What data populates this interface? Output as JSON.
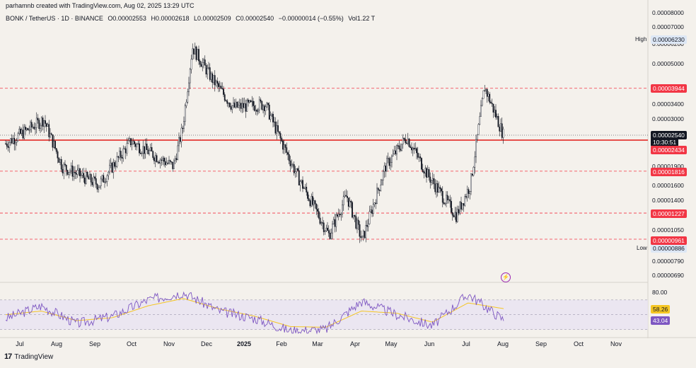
{
  "caption": "parhamnb created with TradingView.com, Aug 02, 2025 13:29 UTC",
  "legend": {
    "symbol": "BONK / TetherUS · 1D · BINANCE",
    "open": "O0.00002553",
    "high": "H0.00002618",
    "low": "L0.00002509",
    "close": "C0.00002540",
    "change": "−0.00000014 (−0.55%)",
    "volume": "Vol1.22 T"
  },
  "price_axis": [
    "0.00008000",
    "0.00007000",
    "0.00006200",
    "0.00005000",
    "0.00003400",
    "0.00003000",
    "0.00001900",
    "0.00001600",
    "0.00001400",
    "0.00001050",
    "0.00000790",
    "0.00000690"
  ],
  "high_label": "High",
  "high_value": "0.00006230",
  "low_label": "Low",
  "low_value": "0.00000886",
  "levels": [
    "0.00003944",
    "0.00002434",
    "0.00001816",
    "0.00001227",
    "0.00000961"
  ],
  "current_price": "0.00002540",
  "countdown": "10:30:51",
  "rsi_axis_top": "80.00",
  "rsi_ma_value": "58.26",
  "rsi_value": "43.04",
  "x_axis": [
    "Jul",
    "Aug",
    "Sep",
    "Oct",
    "Nov",
    "Dec",
    "2025",
    "Feb",
    "Mar",
    "Apr",
    "May",
    "Jun",
    "Jul",
    "Aug",
    "Sep",
    "Oct",
    "Nov"
  ],
  "footer_brand": "TradingView",
  "colors": {
    "up": "#131722",
    "down": "#131722",
    "level_dashed": "#f23645",
    "support": "#e53935",
    "rsi": "#7e57c2",
    "rsi_ma": "#f5c623",
    "rsi_band": "#e9e4f2"
  },
  "icons": [
    "tradingview-logo-icon",
    "lightning-icon"
  ],
  "chart_data": [
    {
      "type": "candlestick",
      "title": "BONK / TetherUS · 1D · BINANCE",
      "x": [
        "Jul",
        "Aug",
        "Sep",
        "Oct",
        "Nov",
        "Dec",
        "2025",
        "Feb",
        "Mar",
        "Apr",
        "May",
        "Jun",
        "Jul",
        "Aug"
      ],
      "close": [
        2.35e-05,
        1.9e-05,
        1.6e-05,
        2.15e-05,
        2.15e-05,
        4.4e-05,
        3.2e-05,
        2.35e-05,
        1.2e-05,
        1.1e-05,
        2.2e-05,
        1.65e-05,
        1.6e-05,
        2.54e-05
      ],
      "high_marked": 6.23e-05,
      "low_marked": 8.86e-06,
      "levels": [
        3.944e-05,
        2.434e-05,
        1.816e-05,
        1.227e-05,
        9.61e-06
      ],
      "last": 2.54e-05,
      "grid": false
    },
    {
      "type": "line",
      "title": "RSI",
      "series": [
        {
          "name": "RSI",
          "values": [
            45,
            62,
            38,
            48,
            70,
            80,
            55,
            45,
            28,
            30,
            68,
            50,
            35,
            78,
            43.04
          ]
        },
        {
          "name": "RSI MA",
          "values": [
            50,
            55,
            42,
            46,
            62,
            72,
            58,
            48,
            34,
            33,
            55,
            52,
            40,
            66,
            58.26
          ]
        }
      ],
      "ylim": [
        20,
        90
      ]
    }
  ]
}
